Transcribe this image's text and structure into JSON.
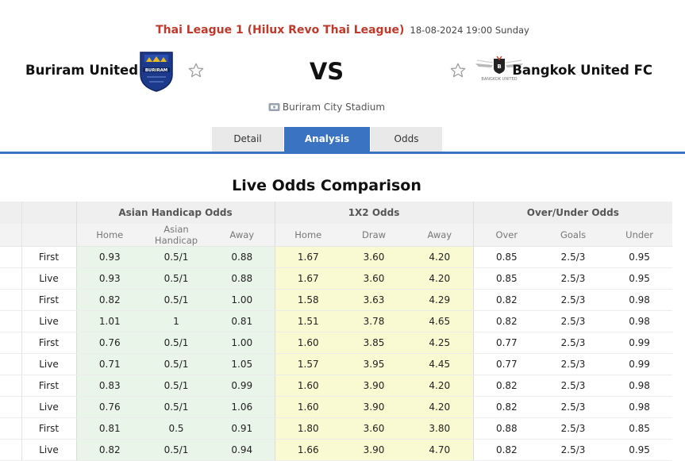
{
  "match": {
    "league": "Thai League 1 (Hilux Revo Thai League)",
    "datetime": "18-08-2024 19:00 Sunday",
    "home_team": "Buriram United",
    "away_team": "Bangkok United FC",
    "vs": "VS",
    "venue": "Buriram City Stadium",
    "home_logo_text": "BURIRAM",
    "away_logo_text": "BANGKOK UNITED"
  },
  "tabs": [
    {
      "label": "Detail",
      "active": false
    },
    {
      "label": "Analysis",
      "active": true
    },
    {
      "label": "Odds",
      "active": false
    }
  ],
  "odds": {
    "title": "Live Odds Comparison",
    "groups": [
      "Asian Handicap Odds",
      "1X2 Odds",
      "Over/Under Odds"
    ],
    "subheaders": [
      "Home",
      "Asian Handicap",
      "Away",
      "Home",
      "Draw",
      "Away",
      "Over",
      "Goals",
      "Under"
    ],
    "rows": [
      {
        "type": "First",
        "vals": [
          "0.93",
          "0.5/1",
          "0.88",
          "1.67",
          "3.60",
          "4.20",
          "0.85",
          "2.5/3",
          "0.95"
        ]
      },
      {
        "type": "Live",
        "vals": [
          "0.93",
          "0.5/1",
          "0.88",
          "1.67",
          "3.60",
          "4.20",
          "0.85",
          "2.5/3",
          "0.95"
        ]
      },
      {
        "type": "First",
        "vals": [
          "0.82",
          "0.5/1",
          "1.00",
          "1.58",
          "3.63",
          "4.29",
          "0.82",
          "2.5/3",
          "0.98"
        ]
      },
      {
        "type": "Live",
        "vals": [
          "1.01",
          "1",
          "0.81",
          "1.51",
          "3.78",
          "4.65",
          "0.82",
          "2.5/3",
          "0.98"
        ]
      },
      {
        "type": "First",
        "vals": [
          "0.76",
          "0.5/1",
          "1.00",
          "1.60",
          "3.85",
          "4.25",
          "0.77",
          "2.5/3",
          "0.99"
        ]
      },
      {
        "type": "Live",
        "vals": [
          "0.71",
          "0.5/1",
          "1.05",
          "1.57",
          "3.95",
          "4.45",
          "0.77",
          "2.5/3",
          "0.99"
        ]
      },
      {
        "type": "First",
        "vals": [
          "0.83",
          "0.5/1",
          "0.99",
          "1.60",
          "3.90",
          "4.20",
          "0.82",
          "2.5/3",
          "0.98"
        ]
      },
      {
        "type": "Live",
        "vals": [
          "0.76",
          "0.5/1",
          "1.06",
          "1.60",
          "3.90",
          "4.20",
          "0.82",
          "2.5/3",
          "0.98"
        ]
      },
      {
        "type": "First",
        "vals": [
          "0.81",
          "0.5",
          "0.91",
          "1.80",
          "3.60",
          "3.80",
          "0.88",
          "2.5/3",
          "0.85"
        ]
      },
      {
        "type": "Live",
        "vals": [
          "0.82",
          "0.5/1",
          "0.94",
          "1.66",
          "3.90",
          "4.70",
          "0.82",
          "2.5/3",
          "0.95"
        ]
      }
    ]
  }
}
